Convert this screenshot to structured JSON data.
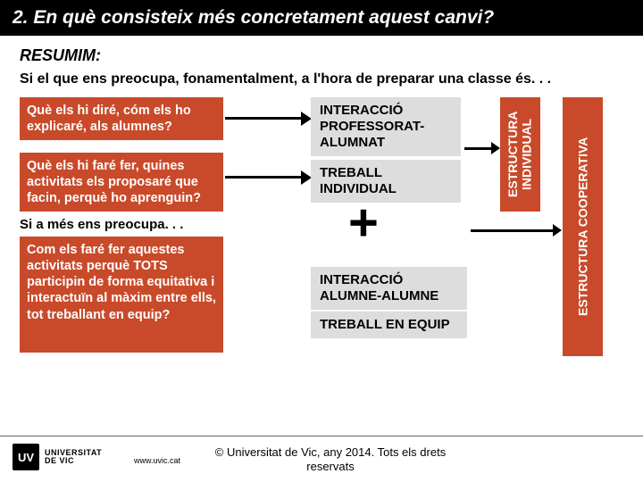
{
  "title": "2. En què consisteix més concretament aquest canvi?",
  "resumim": "RESUMIM:",
  "intro": "Si el que ens preocupa, fonamentalment, a l'hora de preparar una classe és. . .",
  "q1": "Què els hi diré, cóm els ho explicaré, als alumnes?",
  "q2": "Què els hi faré fer, quines activitats els proposaré que facin, perquè ho aprenguin?",
  "mid": "Si a més ens preocupa. . .",
  "q3": "Com els faré fer aquestes activitats perquè TOTS participin de forma equitativa i interactuïn al màxim entre ells, tot treballant en equip?",
  "r1": "INTERACCIÓ PROFESSORAT-ALUMNAT",
  "r2": "TREBALL INDIVIDUAL",
  "plus": "+",
  "r3": "INTERACCIÓ ALUMNE-ALUMNE",
  "r4": "TREBALL EN EQUIP",
  "vbar1": "ESTRUCTURA INDIVIDUAL",
  "vbar2": "ESTRUCTURA COOPERATIVA",
  "logo_mark": "UV",
  "logo_text": "UNIVERSITAT\nDE VIC",
  "url": "www.uvic.cat",
  "copyright": "© Universitat de Vic, any 2014. Tots els drets reservats",
  "colors": {
    "title_bg": "#000000",
    "title_fg": "#ffffff",
    "box_bg": "#c94a2a",
    "box_fg": "#ffffff",
    "result_bg": "#dddddd",
    "result_fg": "#000000",
    "page_bg": "#ffffff"
  }
}
